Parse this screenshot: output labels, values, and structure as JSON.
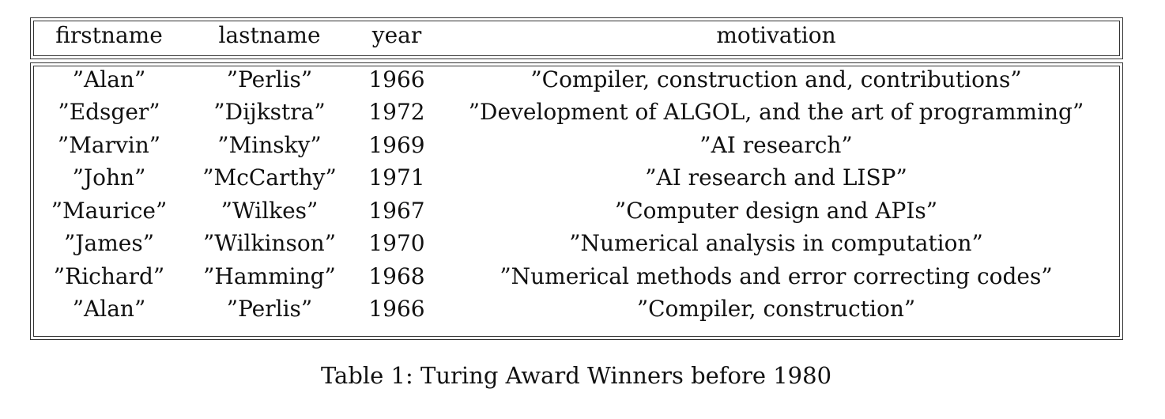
{
  "table": {
    "headers": {
      "firstname": "firstname",
      "lastname": "lastname",
      "year": "year",
      "motivation": "motivation"
    },
    "rows": [
      {
        "firstname": "”Alan”",
        "lastname": "”Perlis”",
        "year": "1966",
        "motivation": "”Compiler, construction and, contributions”"
      },
      {
        "firstname": "”Edsger”",
        "lastname": "”Dijkstra”",
        "year": "1972",
        "motivation": "”Development of ALGOL, and the art of programming”"
      },
      {
        "firstname": "”Marvin”",
        "lastname": "”Minsky”",
        "year": "1969",
        "motivation": "”AI research”"
      },
      {
        "firstname": "”John”",
        "lastname": "”McCarthy”",
        "year": "1971",
        "motivation": "”AI research and LISP”"
      },
      {
        "firstname": "”Maurice”",
        "lastname": "”Wilkes”",
        "year": "1967",
        "motivation": "”Computer design and APIs”"
      },
      {
        "firstname": "”James”",
        "lastname": "”Wilkinson”",
        "year": "1970",
        "motivation": "”Numerical analysis in computation”"
      },
      {
        "firstname": "”Richard”",
        "lastname": "”Hamming”",
        "year": "1968",
        "motivation": "”Numerical methods and error correcting codes”"
      },
      {
        "firstname": "”Alan”",
        "lastname": "”Perlis”",
        "year": "1966",
        "motivation": "”Compiler, construction”"
      }
    ]
  },
  "caption": "Table 1: Turing Award Winners before 1980"
}
